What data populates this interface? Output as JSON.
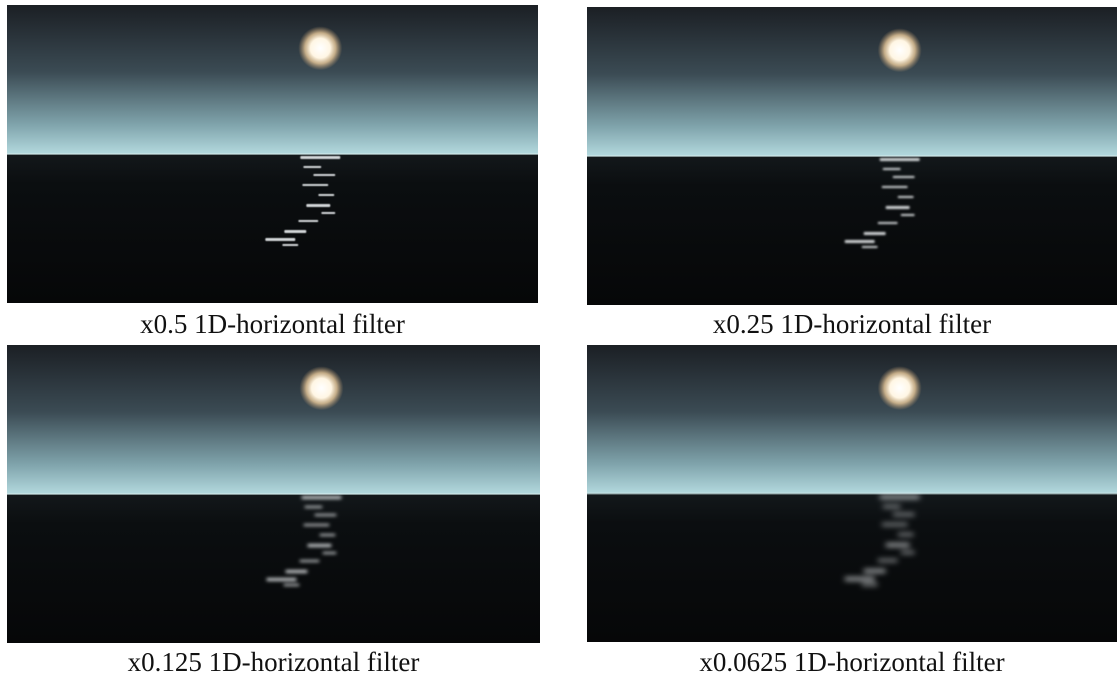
{
  "panels": [
    {
      "caption": "x0.5 1D-horizontal filter"
    },
    {
      "caption": "x0.25 1D-horizontal filter"
    },
    {
      "caption": "x0.125 1D-horizontal filter"
    },
    {
      "caption": "x0.0625 1D-horizontal filter"
    }
  ]
}
